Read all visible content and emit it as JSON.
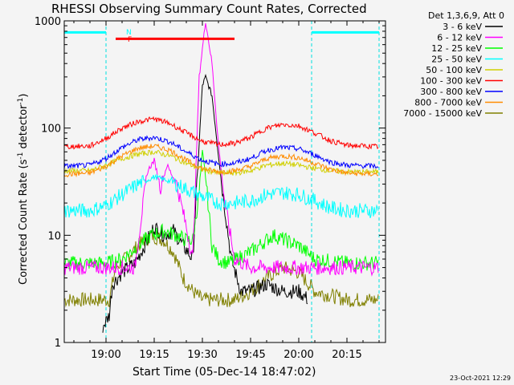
{
  "chart_data": {
    "type": "line",
    "title": "RHESSI Observing Summary Count Rates, Corrected",
    "xlabel": "Start Time (05-Dec-14 18:47:02)",
    "ylabel": "Corrected Count Rate (s⁻¹ detector⁻¹)",
    "ylabel_parts": {
      "main": "Corrected Count Rate (s",
      "sup1": "-1",
      "mid": " detector",
      "sup2": "-1",
      "end": ")"
    },
    "y_scale": "log",
    "xlim": [
      "18:47",
      "20:27"
    ],
    "ylim": [
      1,
      1000
    ],
    "x_ticks": [
      "19:00",
      "19:15",
      "19:30",
      "19:45",
      "20:00",
      "20:15"
    ],
    "y_ticks": [
      "1",
      "10",
      "100",
      "1000"
    ],
    "grid": false,
    "legend_header": "Det 1,3,6,9, Att 0",
    "legend_position": "right",
    "timestamp": "23-Oct-2021 12:29",
    "series": [
      {
        "name": "3 - 6 keV",
        "color": "#000000",
        "x": [
          "18:47",
          "18:56",
          "18:59",
          "19:01",
          "19:02",
          "19:05",
          "19:09",
          "19:12",
          "19:15",
          "19:18",
          "19:21",
          "19:24",
          "19:27",
          "19:30",
          "19:31",
          "19:33",
          "19:36",
          "19:39",
          "19:42",
          "19:45",
          "19:50",
          "19:55",
          "20:00",
          "20:03",
          "20:04"
        ],
        "y": [
          null,
          null,
          1.4,
          1.8,
          3.5,
          4.5,
          5.5,
          8,
          12,
          10,
          11,
          8,
          6,
          250,
          300,
          200,
          30,
          6,
          3,
          3,
          3.5,
          3,
          3,
          2.5,
          null
        ]
      },
      {
        "name": "6 - 12 keV",
        "color": "#ff00ff",
        "x": [
          "18:47",
          "18:55",
          "19:00",
          "19:05",
          "19:09",
          "19:11",
          "19:13",
          "19:15",
          "19:17",
          "19:19",
          "19:22",
          "19:25",
          "19:27",
          "19:29",
          "19:31",
          "19:33",
          "19:35",
          "19:37",
          "19:40",
          "19:45",
          "19:55",
          "20:05",
          "20:15",
          "20:25"
        ],
        "y": [
          5,
          5,
          5,
          5,
          5,
          15,
          40,
          50,
          28,
          45,
          30,
          12,
          6,
          300,
          1000,
          400,
          70,
          20,
          6,
          5,
          5,
          5,
          5,
          5
        ]
      },
      {
        "name": "12 - 25 keV",
        "color": "#00ff00",
        "x": [
          "18:47",
          "19:00",
          "19:05",
          "19:10",
          "19:14",
          "19:18",
          "19:22",
          "19:25",
          "19:27",
          "19:29",
          "19:30",
          "19:31",
          "19:33",
          "19:35",
          "19:38",
          "19:45",
          "19:52",
          "20:00",
          "20:05",
          "20:15",
          "20:25"
        ],
        "y": [
          5.5,
          5.5,
          6,
          8,
          10,
          11,
          10,
          9,
          9,
          25,
          60,
          35,
          8,
          6,
          5.5,
          7,
          10,
          8,
          6,
          5.5,
          5.5
        ]
      },
      {
        "name": "25 - 50 keV",
        "color": "#00ffff",
        "x": [
          "18:47",
          "18:55",
          "19:00",
          "19:05",
          "19:10",
          "19:15",
          "19:20",
          "19:25",
          "19:30",
          "19:35",
          "19:40",
          "19:45",
          "19:50",
          "19:55",
          "20:00",
          "20:05",
          "20:10",
          "20:15",
          "20:25"
        ],
        "y": [
          17,
          17,
          19,
          24,
          30,
          35,
          32,
          27,
          23,
          20,
          20,
          21,
          24,
          25,
          24,
          21,
          18,
          17,
          17
        ]
      },
      {
        "name": "50 - 100 keV",
        "color": "#d0d000",
        "x": [
          "18:47",
          "18:55",
          "19:00",
          "19:05",
          "19:10",
          "19:15",
          "19:20",
          "19:25",
          "19:30",
          "19:35",
          "19:40",
          "19:45",
          "19:50",
          "19:55",
          "20:00",
          "20:05",
          "20:10",
          "20:15",
          "20:25"
        ],
        "y": [
          40,
          40,
          45,
          52,
          57,
          60,
          55,
          47,
          41,
          38,
          38,
          40,
          45,
          47,
          45,
          42,
          40,
          39,
          39
        ]
      },
      {
        "name": "100 - 300 keV",
        "color": "#ff0000",
        "x": [
          "18:47",
          "18:55",
          "19:00",
          "19:05",
          "19:10",
          "19:15",
          "19:20",
          "19:25",
          "19:30",
          "19:35",
          "19:40",
          "19:45",
          "19:50",
          "19:55",
          "20:00",
          "20:05",
          "20:10",
          "20:15",
          "20:25"
        ],
        "y": [
          67,
          68,
          80,
          100,
          115,
          122,
          110,
          90,
          75,
          70,
          72,
          82,
          100,
          108,
          105,
          90,
          76,
          69,
          67
        ]
      },
      {
        "name": "300 - 800 keV",
        "color": "#0000ff",
        "x": [
          "18:47",
          "18:55",
          "19:00",
          "19:05",
          "19:10",
          "19:15",
          "19:20",
          "19:25",
          "19:30",
          "19:35",
          "19:40",
          "19:45",
          "19:50",
          "19:55",
          "20:00",
          "20:05",
          "20:10",
          "20:15",
          "20:25"
        ],
        "y": [
          44,
          45,
          52,
          66,
          78,
          82,
          74,
          60,
          50,
          46,
          47,
          52,
          62,
          66,
          64,
          56,
          48,
          45,
          44
        ]
      },
      {
        "name": "800 - 7000 keV",
        "color": "#ff8c00",
        "x": [
          "18:47",
          "18:55",
          "19:00",
          "19:05",
          "19:10",
          "19:15",
          "19:20",
          "19:25",
          "19:30",
          "19:35",
          "19:40",
          "19:45",
          "19:50",
          "19:55",
          "20:00",
          "20:05",
          "20:10",
          "20:15",
          "20:25"
        ],
        "y": [
          37,
          38,
          44,
          55,
          65,
          68,
          62,
          50,
          42,
          39,
          40,
          44,
          52,
          55,
          53,
          47,
          41,
          38,
          37
        ]
      },
      {
        "name": "7000 - 15000 keV",
        "color": "#808000",
        "x": [
          "18:47",
          "18:58",
          "19:01",
          "19:03",
          "19:06",
          "19:10",
          "19:14",
          "19:18",
          "19:21",
          "19:24",
          "19:27",
          "19:30",
          "19:35",
          "19:40",
          "19:45",
          "19:50",
          "19:55",
          "20:00",
          "20:05",
          "20:15",
          "20:25"
        ],
        "y": [
          2.5,
          2.5,
          2.5,
          5,
          6,
          8,
          10,
          9,
          7,
          4,
          3,
          2.5,
          2.5,
          2.5,
          3,
          4,
          5,
          4.5,
          3,
          2.5,
          2.5
        ]
      }
    ],
    "annotations": {
      "attenuator_flags": [
        {
          "label": "N",
          "color": "#00ffff",
          "x_start": "18:47",
          "x_end": "19:00",
          "y": 780
        },
        {
          "label": "N",
          "color": "#00ffff",
          "x_start": "20:04",
          "x_end": "20:25",
          "y": 780
        },
        {
          "label": "F",
          "color": "#ff0000",
          "x_start": "19:03",
          "x_end": "19:40",
          "y": 680
        }
      ],
      "dashed_lines": [
        "18:47",
        "19:00",
        "20:04",
        "20:25"
      ]
    }
  }
}
